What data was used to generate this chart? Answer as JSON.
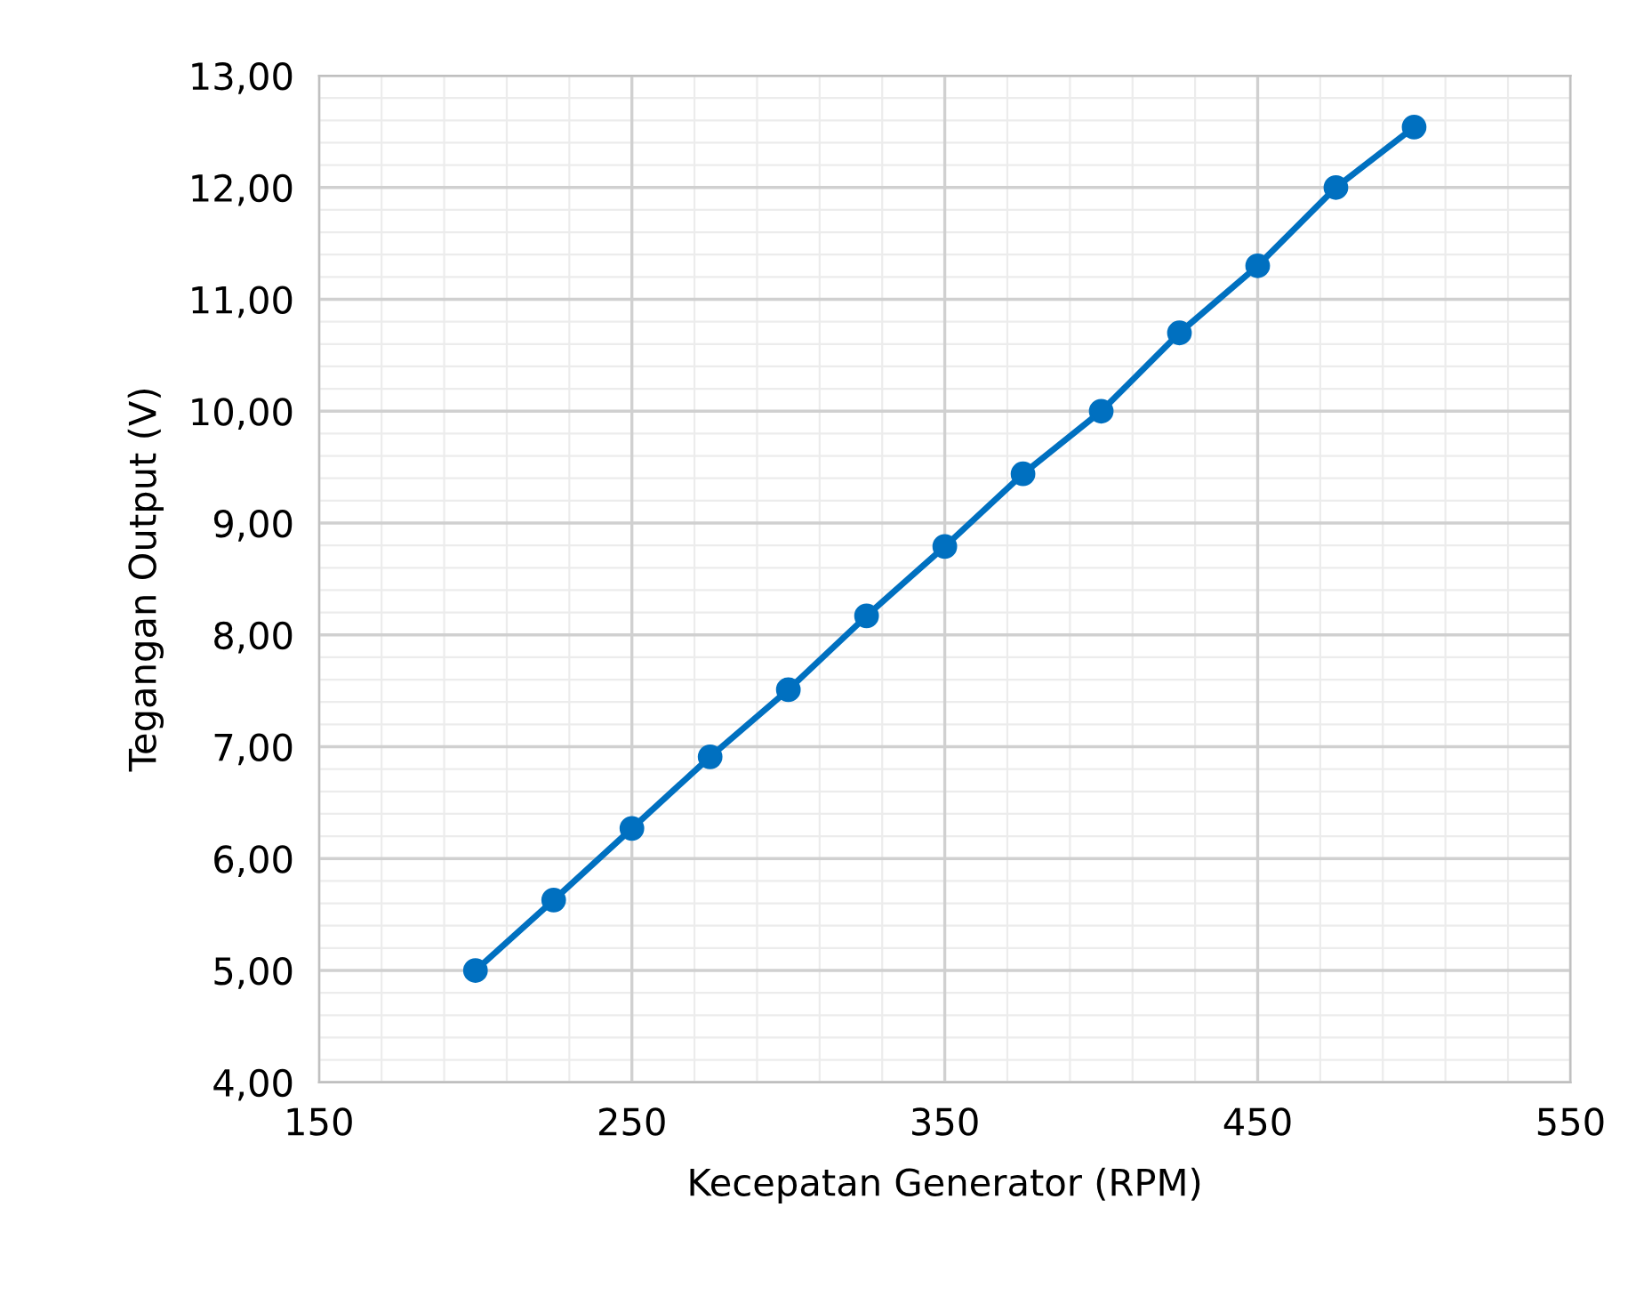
{
  "chart_data": {
    "type": "line",
    "xlabel": "Kecepatan Generator (RPM)",
    "ylabel": "Tegangan Output (V)",
    "x": [
      200,
      225,
      250,
      275,
      300,
      325,
      350,
      375,
      400,
      425,
      450,
      475,
      500
    ],
    "series": [
      {
        "color": "#0070c0",
        "values": [
          5.0,
          5.63,
          6.27,
          6.91,
          7.51,
          8.17,
          8.79,
          9.44,
          10.0,
          10.7,
          11.3,
          12.0,
          12.54
        ]
      }
    ],
    "xlim": [
      150,
      550
    ],
    "xticks": [
      150,
      250,
      350,
      450,
      550
    ],
    "ylim": [
      4,
      13
    ],
    "yticks": [
      {
        "value": 4,
        "label": "4,00"
      },
      {
        "value": 5,
        "label": "5,00"
      },
      {
        "value": 6,
        "label": "6,00"
      },
      {
        "value": 7,
        "label": "7,00"
      },
      {
        "value": 8,
        "label": "8,00"
      },
      {
        "value": 9,
        "label": "9,00"
      },
      {
        "value": 10,
        "label": "10,00"
      },
      {
        "value": 11,
        "label": "11,00"
      },
      {
        "value": 12,
        "label": "12,00"
      },
      {
        "value": 13,
        "label": "13,00"
      }
    ],
    "grid": true,
    "marker": "circle",
    "line_style": "solid",
    "legend": false
  }
}
